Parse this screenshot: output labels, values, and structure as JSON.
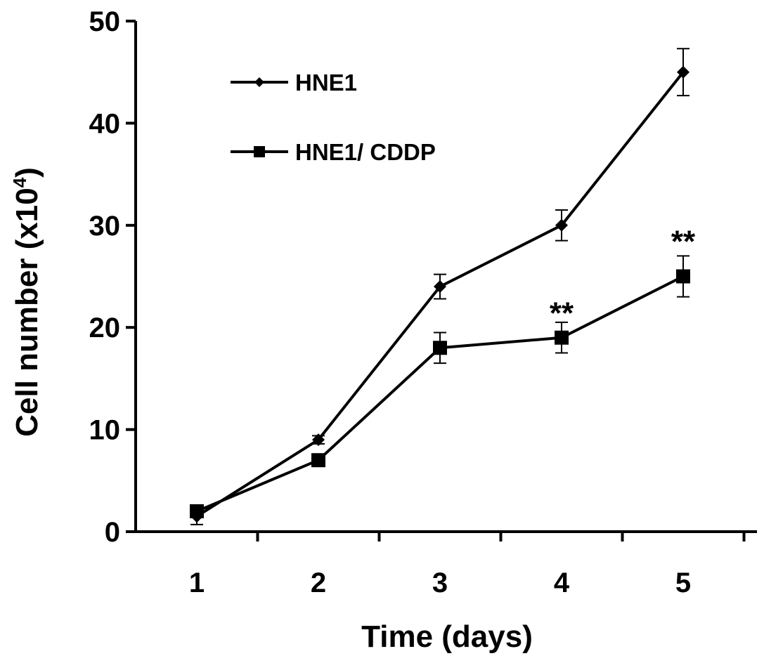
{
  "chart_data": {
    "type": "line",
    "xlabel": "Time (days)",
    "ylabel_main": "Cell number (x10",
    "ylabel_exp": "4",
    "ylabel_close": ")",
    "categories": [
      "1",
      "2",
      "3",
      "4",
      "5"
    ],
    "x": [
      1,
      2,
      3,
      4,
      5
    ],
    "ylim": [
      0,
      50
    ],
    "yticks": [
      "0",
      "10",
      "20",
      "30",
      "40",
      "50"
    ],
    "grid": false,
    "legend_position": "top-left",
    "series": [
      {
        "name": "HNE1",
        "marker": "diamond",
        "values": [
          1.5,
          9,
          24,
          30,
          45
        ],
        "errors": [
          0.8,
          0.4,
          1.2,
          1.5,
          2.3
        ]
      },
      {
        "name": "HNE1/ CDDP",
        "marker": "square",
        "values": [
          2,
          7,
          18,
          19,
          25
        ],
        "errors": [
          0.4,
          0.3,
          1.5,
          1.5,
          2.0
        ]
      }
    ],
    "annotations": [
      {
        "x": 4,
        "y": 21.5,
        "text": "**"
      },
      {
        "x": 5,
        "y": 28.5,
        "text": "**"
      }
    ],
    "colors": {
      "line": "#000000",
      "background": "#ffffff"
    }
  }
}
